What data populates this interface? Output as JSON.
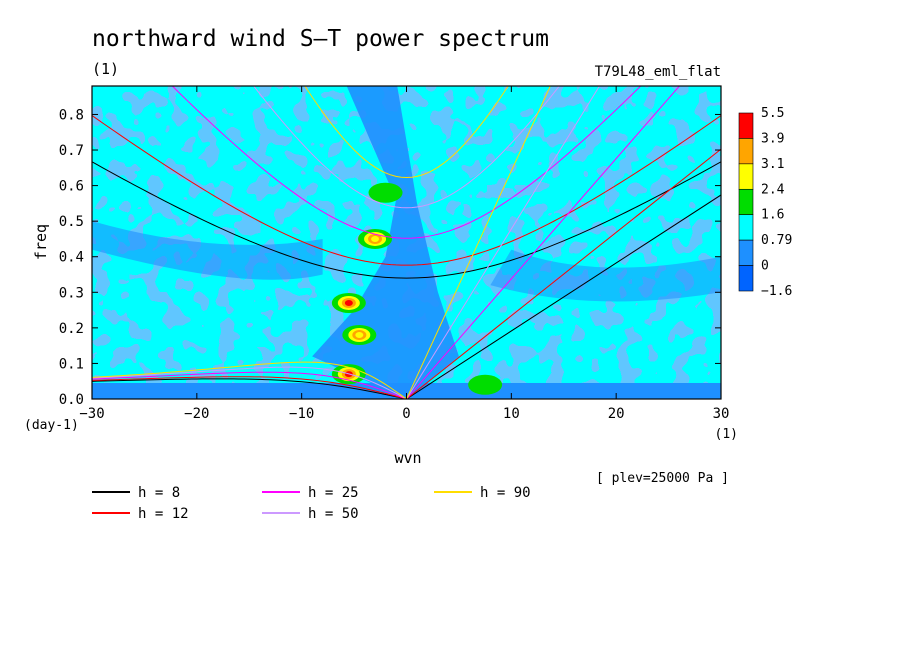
{
  "chart_data": {
    "type": "heatmap",
    "title": "northward wind S–T power spectrum",
    "subtitle": "(1)",
    "run_label": "T79L48_eml_flat",
    "xlabel": "wvn",
    "x_unit": "(1)",
    "ylabel": "freq",
    "y_unit": "(day-1)",
    "xlim": [
      -30,
      30
    ],
    "ylim": [
      0,
      0.88
    ],
    "xticks": [
      -30,
      -20,
      -10,
      0,
      10,
      20,
      30
    ],
    "yticks": [
      "0.0",
      "0.1",
      "0.2",
      "0.3",
      "0.4",
      "0.5",
      "0.6",
      "0.7",
      "0.8"
    ],
    "annotation": "[ plev=25000 Pa ]",
    "colorbar": {
      "levels": [
        "5.5",
        "3.9",
        "3.1",
        "2.4",
        "1.6",
        "0.79",
        "0",
        "-1.6"
      ],
      "colors": [
        "#ff0000",
        "#ffa500",
        "#ffff00",
        "#00dd00",
        "#00ffff",
        "#1e90ff",
        "#0064ff"
      ]
    },
    "background_color": "#00ffff",
    "spectral_peaks": [
      {
        "wvn": -5.5,
        "freq": 0.07,
        "level": "5.5"
      },
      {
        "wvn": -5.5,
        "freq": 0.27,
        "level": "5.5"
      },
      {
        "wvn": -4.5,
        "freq": 0.18,
        "level": "3.1"
      },
      {
        "wvn": -3.0,
        "freq": 0.45,
        "level": "3.1"
      },
      {
        "wvn": -2.0,
        "freq": 0.58,
        "level": "1.6"
      },
      {
        "wvn": 7.5,
        "freq": 0.04,
        "level": "1.6"
      }
    ],
    "dispersion_curves": [
      {
        "name": "h =  8",
        "depth": 8,
        "color": "#000000"
      },
      {
        "name": "h = 12",
        "depth": 12,
        "color": "#ff0000"
      },
      {
        "name": "h = 25",
        "depth": 25,
        "color": "#ff00ff"
      },
      {
        "name": "h = 50",
        "depth": 50,
        "color": "#cc99ff"
      },
      {
        "name": "h = 90",
        "depth": 90,
        "color": "#ffdd00"
      }
    ]
  }
}
